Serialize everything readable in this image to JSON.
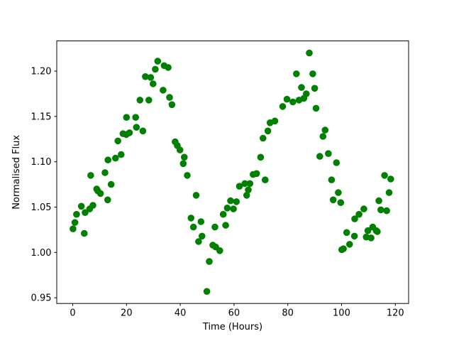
{
  "chart_data": {
    "type": "scatter",
    "title": "",
    "xlabel": "Time (Hours)",
    "ylabel": "Normalised Flux",
    "marker": {
      "shape": "circle",
      "color": "#008000",
      "radius_px": 4.8
    },
    "grid": false,
    "legend": null,
    "xlim": [
      -5.95,
      124.95
    ],
    "ylim": [
      0.9437,
      1.2333
    ],
    "xticks": [
      0,
      20,
      40,
      60,
      80,
      100,
      120
    ],
    "yticks": [
      "0.95",
      "1.00",
      "1.05",
      "1.10",
      "1.15",
      "1.20"
    ],
    "x": [
      0.1,
      0.8,
      1.4,
      3.2,
      4.3,
      4.6,
      6.3,
      6.7,
      7.5,
      8.9,
      9.3,
      10.3,
      12.0,
      13.0,
      13.1,
      14.3,
      15.9,
      16.8,
      18.0,
      18.7,
      19.9,
      20.0,
      21.1,
      23.4,
      23.7,
      25.0,
      26.1,
      27.0,
      28.3,
      29.0,
      29.9,
      30.7,
      31.6,
      33.6,
      34.0,
      35.5,
      36.0,
      36.9,
      38.1,
      38.9,
      39.9,
      41.1,
      41.5,
      42.6,
      44.0,
      44.9,
      45.9,
      46.8,
      47.7,
      48.1,
      49.9,
      50.8,
      52.1,
      52.9,
      53.2,
      54.7,
      56.0,
      56.9,
      57.5,
      58.7,
      59.8,
      60.9,
      62.0,
      64.0,
      64.7,
      65.3,
      65.9,
      67.1,
      68.4,
      69.9,
      70.8,
      71.6,
      72.6,
      73.4,
      75.2,
      78.1,
      79.7,
      81.9,
      83.2,
      84.2,
      85.1,
      86.0,
      86.9,
      88.0,
      89.3,
      90.0,
      90.5,
      91.9,
      93.1,
      93.9,
      95.1,
      96.3,
      96.9,
      98.1,
      98.8,
      99.7,
      100.1,
      100.7,
      101.9,
      103.0,
      104.8,
      104.9,
      106.5,
      108.3,
      109.2,
      109.8,
      111.0,
      111.6,
      112.9,
      113.3,
      113.9,
      114.6,
      116.0,
      116.8,
      117.7,
      118.3
    ],
    "y": [
      1.026,
      1.033,
      1.042,
      1.051,
      1.021,
      1.044,
      1.048,
      1.085,
      1.052,
      1.07,
      1.068,
      1.065,
      1.088,
      1.058,
      1.102,
      1.075,
      1.104,
      1.123,
      1.108,
      1.131,
      1.13,
      1.149,
      1.132,
      1.149,
      1.138,
      1.168,
      1.134,
      1.194,
      1.168,
      1.193,
      1.186,
      1.202,
      1.211,
      1.179,
      1.206,
      1.204,
      1.171,
      1.163,
      1.122,
      1.118,
      1.113,
      1.098,
      1.105,
      1.085,
      1.038,
      1.028,
      1.063,
      1.012,
      1.034,
      1.018,
      0.957,
      0.99,
      1.008,
      1.028,
      1.006,
      1.002,
      1.042,
      1.03,
      1.049,
      1.057,
      1.048,
      1.056,
      1.073,
      1.076,
      1.063,
      1.069,
      1.076,
      1.086,
      1.087,
      1.105,
      1.126,
      1.08,
      1.134,
      1.143,
      1.145,
      1.161,
      1.169,
      1.166,
      1.197,
      1.168,
      1.182,
      1.17,
      1.175,
      1.22,
      1.197,
      1.181,
      1.159,
      1.106,
      1.128,
      1.135,
      1.109,
      1.08,
      1.058,
      1.099,
      1.066,
      1.055,
      1.003,
      1.004,
      1.022,
      1.009,
      1.018,
      1.037,
      1.042,
      1.048,
      1.017,
      1.024,
      1.016,
      1.028,
      1.024,
      1.023,
      1.057,
      1.047,
      1.085,
      1.046,
      1.066,
      1.081
    ]
  }
}
